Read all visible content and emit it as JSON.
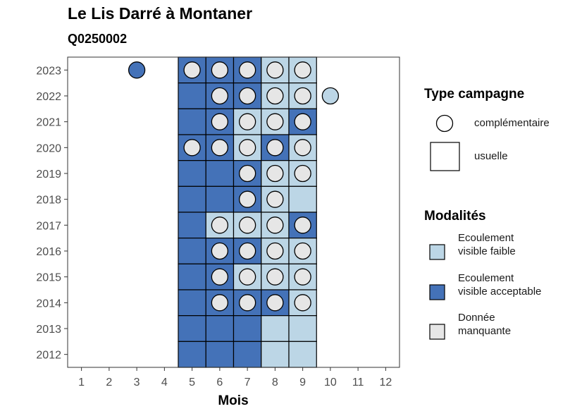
{
  "chart_data": {
    "type": "heatmap",
    "title": "Le Lis Darré à Montaner",
    "subtitle": "Q0250002",
    "xlabel": "Mois",
    "ylabel": "",
    "x_ticks": [
      1,
      2,
      3,
      4,
      5,
      6,
      7,
      8,
      9,
      10,
      11,
      12
    ],
    "y_ticks": [
      2012,
      2013,
      2014,
      2015,
      2016,
      2017,
      2018,
      2019,
      2020,
      2021,
      2022,
      2023
    ],
    "xlim": [
      0.5,
      12.5
    ],
    "ylim": [
      2011.5,
      2023.5
    ],
    "colors": {
      "faible": "#bcd6e6",
      "acceptable": "#4472b8",
      "manquante": "#e6e6e6"
    },
    "legend_type": {
      "title": "Type campagne",
      "items": [
        {
          "key": "complementaire",
          "label": "complémentaire",
          "shape": "circle"
        },
        {
          "key": "usuelle",
          "label": "usuelle",
          "shape": "square"
        }
      ]
    },
    "legend_mod": {
      "title": "Modalités",
      "items": [
        {
          "key": "faible",
          "label": "Ecoulement visible faible"
        },
        {
          "key": "acceptable",
          "label": "Ecoulement visible acceptable"
        },
        {
          "key": "manquante",
          "label": "Donnée manquante"
        }
      ]
    },
    "squares": [
      {
        "year": 2023,
        "month": 5,
        "m": "acceptable"
      },
      {
        "year": 2023,
        "month": 6,
        "m": "acceptable"
      },
      {
        "year": 2023,
        "month": 7,
        "m": "acceptable"
      },
      {
        "year": 2023,
        "month": 8,
        "m": "faible"
      },
      {
        "year": 2023,
        "month": 9,
        "m": "faible"
      },
      {
        "year": 2022,
        "month": 5,
        "m": "acceptable"
      },
      {
        "year": 2022,
        "month": 6,
        "m": "acceptable"
      },
      {
        "year": 2022,
        "month": 7,
        "m": "acceptable"
      },
      {
        "year": 2022,
        "month": 8,
        "m": "faible"
      },
      {
        "year": 2022,
        "month": 9,
        "m": "faible"
      },
      {
        "year": 2021,
        "month": 5,
        "m": "acceptable"
      },
      {
        "year": 2021,
        "month": 6,
        "m": "acceptable"
      },
      {
        "year": 2021,
        "month": 7,
        "m": "faible"
      },
      {
        "year": 2021,
        "month": 8,
        "m": "faible"
      },
      {
        "year": 2021,
        "month": 9,
        "m": "acceptable"
      },
      {
        "year": 2020,
        "month": 5,
        "m": "acceptable"
      },
      {
        "year": 2020,
        "month": 6,
        "m": "acceptable"
      },
      {
        "year": 2020,
        "month": 7,
        "m": "faible"
      },
      {
        "year": 2020,
        "month": 8,
        "m": "acceptable"
      },
      {
        "year": 2020,
        "month": 9,
        "m": "faible"
      },
      {
        "year": 2019,
        "month": 5,
        "m": "acceptable"
      },
      {
        "year": 2019,
        "month": 6,
        "m": "acceptable"
      },
      {
        "year": 2019,
        "month": 7,
        "m": "acceptable"
      },
      {
        "year": 2019,
        "month": 8,
        "m": "faible"
      },
      {
        "year": 2019,
        "month": 9,
        "m": "faible"
      },
      {
        "year": 2018,
        "month": 5,
        "m": "acceptable"
      },
      {
        "year": 2018,
        "month": 6,
        "m": "acceptable"
      },
      {
        "year": 2018,
        "month": 7,
        "m": "acceptable"
      },
      {
        "year": 2018,
        "month": 8,
        "m": "faible"
      },
      {
        "year": 2018,
        "month": 9,
        "m": "faible"
      },
      {
        "year": 2017,
        "month": 5,
        "m": "acceptable"
      },
      {
        "year": 2017,
        "month": 6,
        "m": "faible"
      },
      {
        "year": 2017,
        "month": 7,
        "m": "faible"
      },
      {
        "year": 2017,
        "month": 8,
        "m": "faible"
      },
      {
        "year": 2017,
        "month": 9,
        "m": "acceptable"
      },
      {
        "year": 2016,
        "month": 5,
        "m": "acceptable"
      },
      {
        "year": 2016,
        "month": 6,
        "m": "acceptable"
      },
      {
        "year": 2016,
        "month": 7,
        "m": "acceptable"
      },
      {
        "year": 2016,
        "month": 8,
        "m": "faible"
      },
      {
        "year": 2016,
        "month": 9,
        "m": "faible"
      },
      {
        "year": 2015,
        "month": 5,
        "m": "acceptable"
      },
      {
        "year": 2015,
        "month": 6,
        "m": "acceptable"
      },
      {
        "year": 2015,
        "month": 7,
        "m": "faible"
      },
      {
        "year": 2015,
        "month": 8,
        "m": "faible"
      },
      {
        "year": 2015,
        "month": 9,
        "m": "faible"
      },
      {
        "year": 2014,
        "month": 5,
        "m": "acceptable"
      },
      {
        "year": 2014,
        "month": 6,
        "m": "acceptable"
      },
      {
        "year": 2014,
        "month": 7,
        "m": "acceptable"
      },
      {
        "year": 2014,
        "month": 8,
        "m": "acceptable"
      },
      {
        "year": 2014,
        "month": 9,
        "m": "faible"
      },
      {
        "year": 2013,
        "month": 5,
        "m": "acceptable"
      },
      {
        "year": 2013,
        "month": 6,
        "m": "acceptable"
      },
      {
        "year": 2013,
        "month": 7,
        "m": "acceptable"
      },
      {
        "year": 2013,
        "month": 8,
        "m": "faible"
      },
      {
        "year": 2013,
        "month": 9,
        "m": "faible"
      },
      {
        "year": 2012,
        "month": 5,
        "m": "acceptable"
      },
      {
        "year": 2012,
        "month": 6,
        "m": "acceptable"
      },
      {
        "year": 2012,
        "month": 7,
        "m": "acceptable"
      },
      {
        "year": 2012,
        "month": 8,
        "m": "faible"
      },
      {
        "year": 2012,
        "month": 9,
        "m": "faible"
      }
    ],
    "circles": [
      {
        "year": 2023,
        "month": 3,
        "m": "acceptable"
      },
      {
        "year": 2023,
        "month": 5,
        "m": "manquante"
      },
      {
        "year": 2023,
        "month": 6,
        "m": "manquante"
      },
      {
        "year": 2023,
        "month": 7,
        "m": "manquante"
      },
      {
        "year": 2023,
        "month": 8,
        "m": "manquante"
      },
      {
        "year": 2023,
        "month": 9,
        "m": "manquante"
      },
      {
        "year": 2022,
        "month": 6,
        "m": "manquante"
      },
      {
        "year": 2022,
        "month": 7,
        "m": "manquante"
      },
      {
        "year": 2022,
        "month": 8,
        "m": "manquante"
      },
      {
        "year": 2022,
        "month": 9,
        "m": "manquante"
      },
      {
        "year": 2022,
        "month": 10,
        "m": "faible"
      },
      {
        "year": 2021,
        "month": 6,
        "m": "manquante"
      },
      {
        "year": 2021,
        "month": 7,
        "m": "manquante"
      },
      {
        "year": 2021,
        "month": 8,
        "m": "manquante"
      },
      {
        "year": 2021,
        "month": 9,
        "m": "manquante"
      },
      {
        "year": 2020,
        "month": 5,
        "m": "manquante"
      },
      {
        "year": 2020,
        "month": 6,
        "m": "manquante"
      },
      {
        "year": 2020,
        "month": 7,
        "m": "manquante"
      },
      {
        "year": 2020,
        "month": 8,
        "m": "manquante"
      },
      {
        "year": 2020,
        "month": 9,
        "m": "manquante"
      },
      {
        "year": 2019,
        "month": 7,
        "m": "manquante"
      },
      {
        "year": 2019,
        "month": 8,
        "m": "manquante"
      },
      {
        "year": 2019,
        "month": 9,
        "m": "manquante"
      },
      {
        "year": 2018,
        "month": 7,
        "m": "manquante"
      },
      {
        "year": 2018,
        "month": 8,
        "m": "manquante"
      },
      {
        "year": 2017,
        "month": 6,
        "m": "manquante"
      },
      {
        "year": 2017,
        "month": 7,
        "m": "manquante"
      },
      {
        "year": 2017,
        "month": 8,
        "m": "manquante"
      },
      {
        "year": 2017,
        "month": 9,
        "m": "manquante"
      },
      {
        "year": 2016,
        "month": 6,
        "m": "manquante"
      },
      {
        "year": 2016,
        "month": 7,
        "m": "manquante"
      },
      {
        "year": 2016,
        "month": 8,
        "m": "manquante"
      },
      {
        "year": 2016,
        "month": 9,
        "m": "manquante"
      },
      {
        "year": 2015,
        "month": 6,
        "m": "manquante"
      },
      {
        "year": 2015,
        "month": 7,
        "m": "manquante"
      },
      {
        "year": 2015,
        "month": 8,
        "m": "manquante"
      },
      {
        "year": 2015,
        "month": 9,
        "m": "manquante"
      },
      {
        "year": 2014,
        "month": 6,
        "m": "manquante"
      },
      {
        "year": 2014,
        "month": 7,
        "m": "manquante"
      },
      {
        "year": 2014,
        "month": 8,
        "m": "manquante"
      },
      {
        "year": 2014,
        "month": 9,
        "m": "manquante"
      }
    ]
  }
}
